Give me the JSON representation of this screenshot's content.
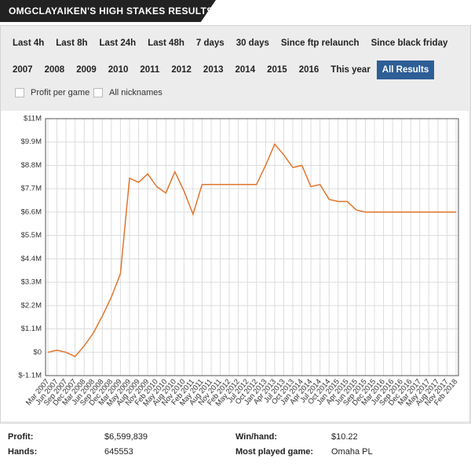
{
  "header": {
    "title": "OMGCLAYAIKEN'S HIGH STAKES RESULTS"
  },
  "filters": {
    "row1": [
      "Last 4h",
      "Last 8h",
      "Last 24h",
      "Last 48h",
      "7 days",
      "30 days",
      "Since ftp relaunch",
      "Since black friday"
    ],
    "row2": [
      "2007",
      "2008",
      "2009",
      "2010",
      "2011",
      "2012",
      "2013",
      "2014",
      "2015",
      "2016",
      "This year",
      {
        "label": "All Results",
        "selected": true
      }
    ]
  },
  "options": [
    "Profit per game",
    "All nicknames"
  ],
  "chart_data": {
    "type": "line",
    "categories": [
      "Mar 2007",
      "Jun 2007",
      "Sep 2007",
      "Dec 2007",
      "Mar 2008",
      "Jun 2008",
      "Sep 2008",
      "Dec 2008",
      "Mar 2009",
      "May 2009",
      "Aug 2009",
      "Nov 2009",
      "Feb 2010",
      "May 2010",
      "Aug 2010",
      "Nov 2010",
      "Feb 2011",
      "May 2011",
      "Aug 2011",
      "Nov 2011",
      "Feb 2012",
      "May 2012",
      "Jul 2012",
      "Oct 2012",
      "Jan 2013",
      "Apr 2013",
      "Jul 2013",
      "Oct 2013",
      "Jan 2014",
      "Apr 2014",
      "Jul 2014",
      "Oct 2014",
      "Jan 2015",
      "Apr 2015",
      "Jun 2015",
      "Sep 2015",
      "Dec 2015",
      "Mar 2016",
      "Jun 2016",
      "Sep 2016",
      "Dec 2016",
      "Mar 2017",
      "May 2017",
      "Aug 2017",
      "Nov 2017",
      "Feb 2018"
    ],
    "values": [
      0,
      100000,
      0,
      -200000,
      300000,
      900000,
      1700000,
      2600000,
      3700000,
      8200000,
      8000000,
      8400000,
      7800000,
      7500000,
      8500000,
      7600000,
      6500000,
      7900000,
      7900000,
      7900000,
      7900000,
      7900000,
      7900000,
      7900000,
      8800000,
      9800000,
      9300000,
      8700000,
      8800000,
      7800000,
      7900000,
      7200000,
      7100000,
      7100000,
      6700000,
      6600000,
      6600000,
      6600000,
      6600000,
      6600000,
      6600000,
      6600000,
      6600000,
      6600000,
      6600000,
      6599839
    ],
    "color": "#e0752d",
    "ylim": [
      -1100000,
      11000000
    ],
    "yticks": [
      {
        "value": -1100000,
        "label": "$-1.1M"
      },
      {
        "value": 0,
        "label": "$0"
      },
      {
        "value": 1100000,
        "label": "$1.1M"
      },
      {
        "value": 2200000,
        "label": "$2.2M"
      },
      {
        "value": 3300000,
        "label": "$3.3M"
      },
      {
        "value": 4400000,
        "label": "$4.4M"
      },
      {
        "value": 5500000,
        "label": "$5.5M"
      },
      {
        "value": 6600000,
        "label": "$6.6M"
      },
      {
        "value": 7700000,
        "label": "$7.7M"
      },
      {
        "value": 8800000,
        "label": "$8.8M"
      },
      {
        "value": 9900000,
        "label": "$9.9M"
      },
      {
        "value": 11000000,
        "label": "$11M"
      }
    ],
    "grid": true
  },
  "stats": [
    {
      "label": "Profit:",
      "value": "$6,599,839"
    },
    {
      "label": "Hands:",
      "value": "645553"
    },
    {
      "label": "Win/hand:",
      "value": "$10.22"
    },
    {
      "label": "Most played game:",
      "value": "Omaha PL"
    }
  ]
}
